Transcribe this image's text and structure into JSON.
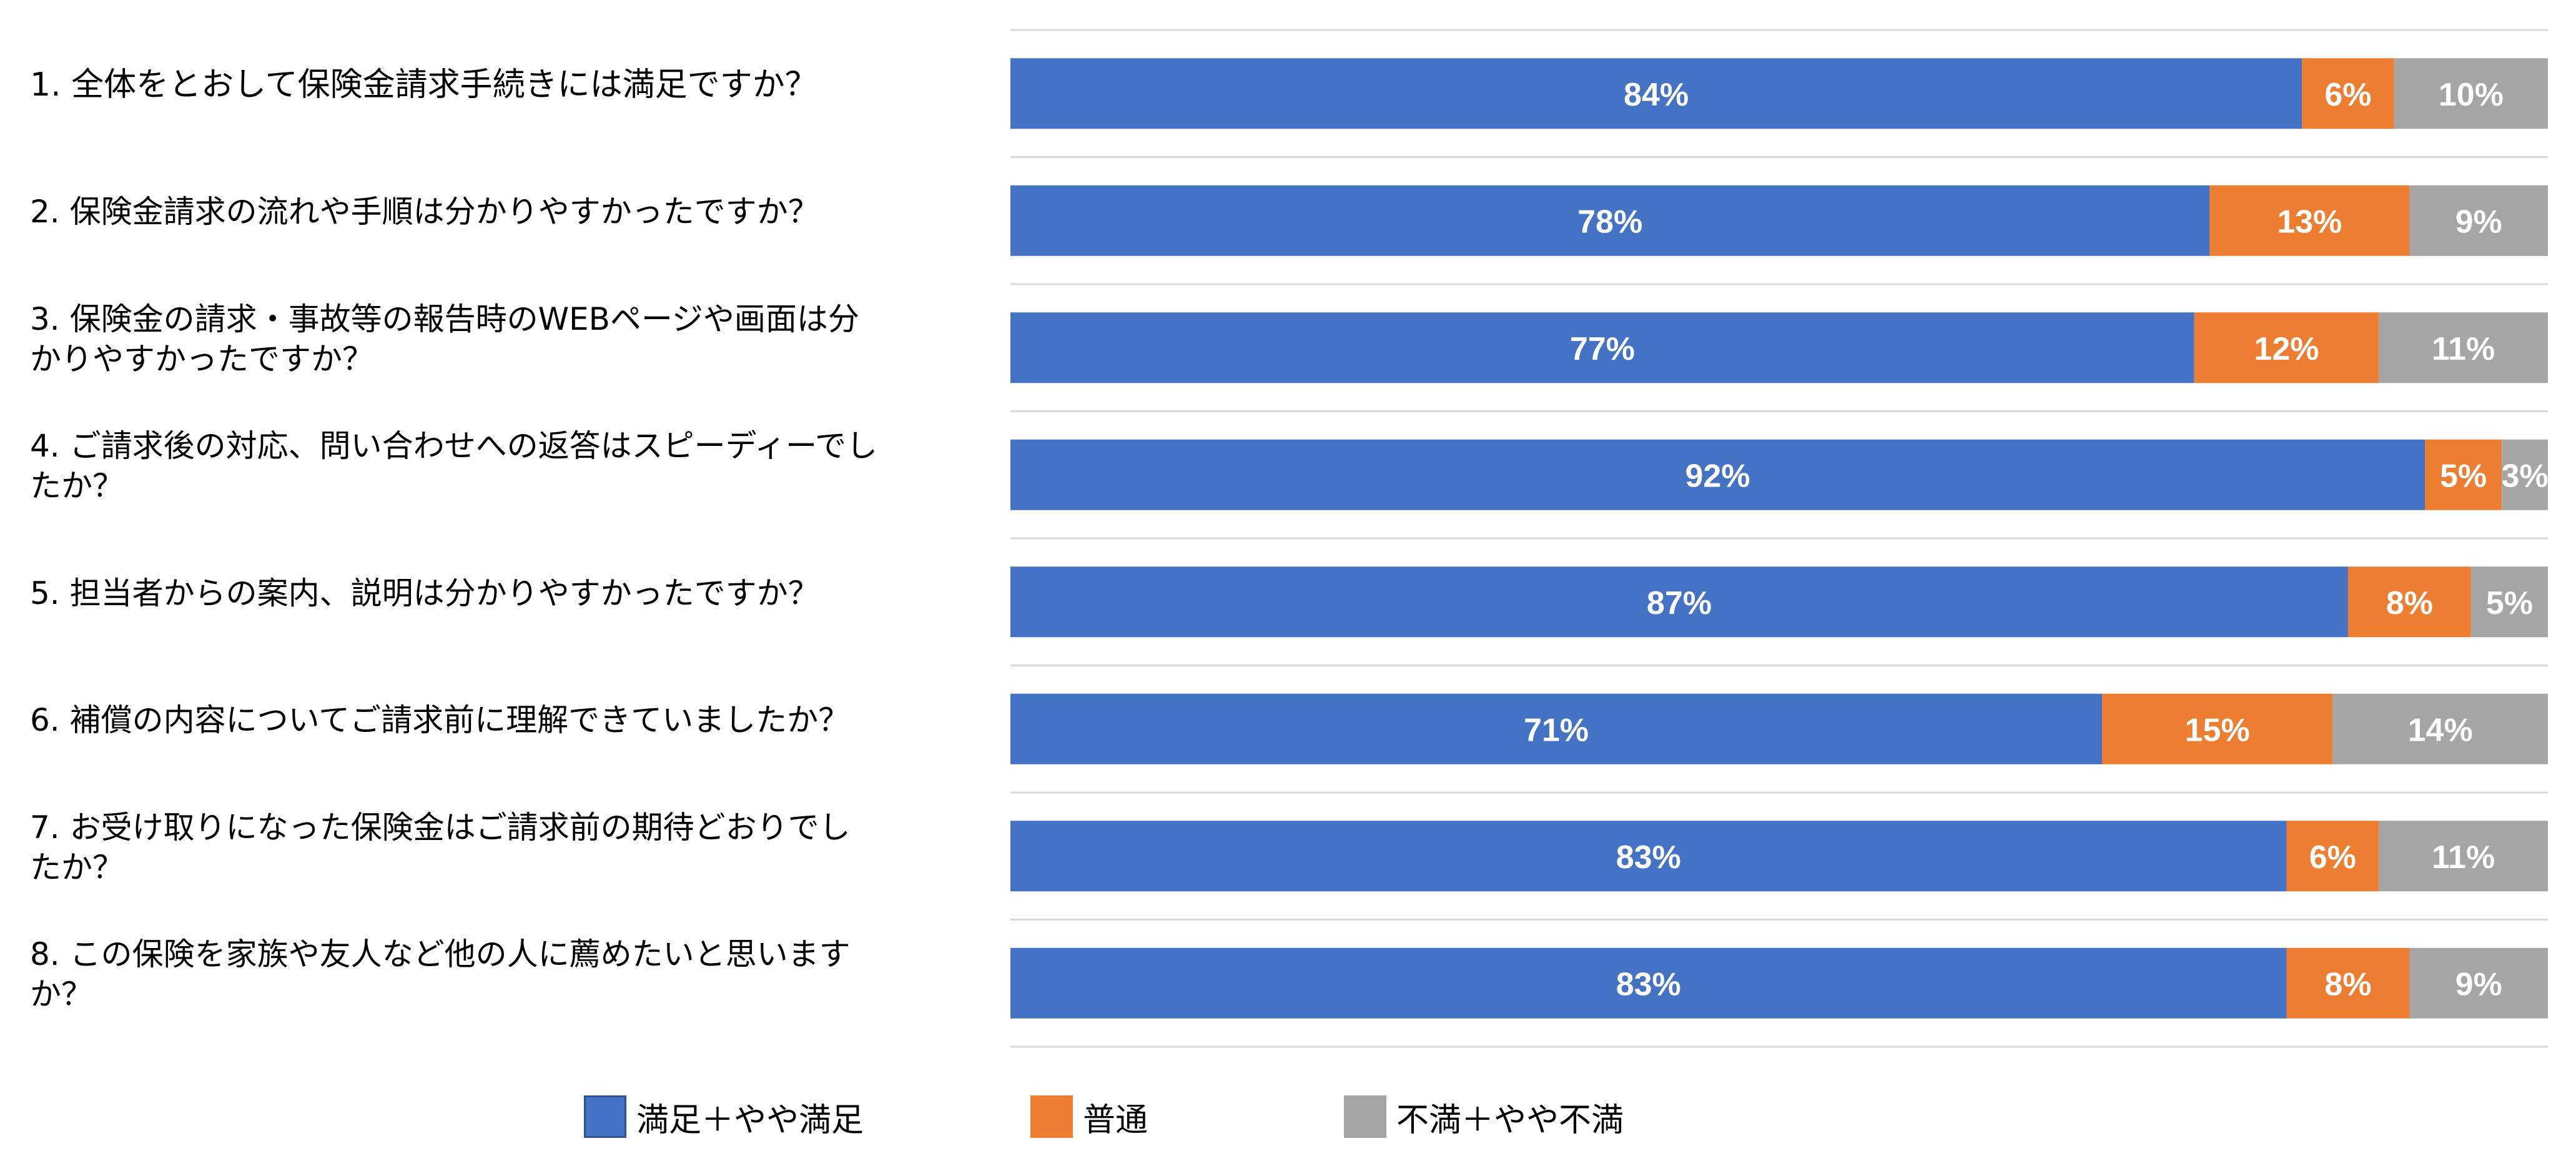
{
  "chart_data": {
    "type": "bar",
    "orientation": "horizontal",
    "stacked": true,
    "categories": [
      "1.  全体をとおして保険金請求手続きには満足ですか？",
      "2.  保険金請求の流れや手順は分かりやすかったですか？",
      "3.  保険金の請求・事故等の報告時のWEBページや画面は分かりやすかったですか？",
      "4.  ご請求後の対応、問い合わせへの返答はスピーディーでしたか？",
      "5.  担当者からの案内、説明は分かりやすかったですか？",
      "6.  補償の内容についてご請求前に理解できていましたか？",
      "7.  お受け取りになった保険金はご請求前の期待どおりでしたか？",
      "8.  この保険を家族や友人など他の人に薦めたいと思いますか？"
    ],
    "category_lines": [
      [
        "1.  全体をとおして保険金請求手続きには満足ですか？"
      ],
      [
        "2.  保険金請求の流れや手順は分かりやすかったですか？"
      ],
      [
        "3.  保険金の請求・事故等の報告時のWEBページや画面は分",
        "かりやすかったですか？"
      ],
      [
        "4.  ご請求後の対応、問い合わせへの返答はスピーディーでし",
        "たか？"
      ],
      [
        "5.  担当者からの案内、説明は分かりやすかったですか？"
      ],
      [
        "6.  補償の内容についてご請求前に理解できていましたか？"
      ],
      [
        "7.  お受け取りになった保険金はご請求前の期待どおりでし",
        "たか？"
      ],
      [
        "8.  この保険を家族や友人など他の人に薦めたいと思います",
        "か？"
      ]
    ],
    "series": [
      {
        "name": "満足＋やや満足",
        "color": "#4472c4",
        "values": [
          84,
          78,
          77,
          92,
          87,
          71,
          83,
          83
        ]
      },
      {
        "name": "普通",
        "color": "#ed7d31",
        "values": [
          6,
          13,
          12,
          5,
          8,
          15,
          6,
          8
        ]
      },
      {
        "name": "不満＋やや不満",
        "color": "#a5a5a5",
        "values": [
          10,
          9,
          11,
          3,
          5,
          14,
          11,
          9
        ]
      }
    ],
    "value_suffix": "%",
    "grid": true,
    "legend_position": "bottom"
  }
}
